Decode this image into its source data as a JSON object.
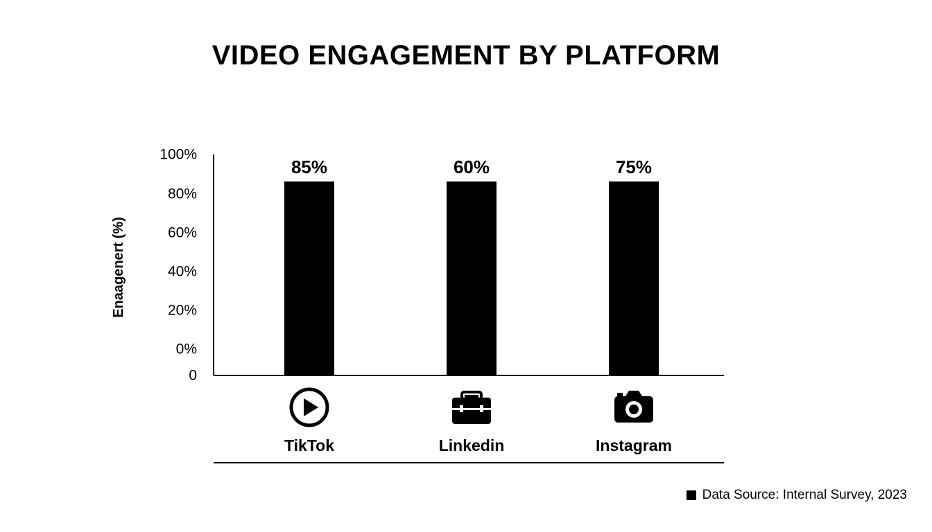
{
  "chart_data": {
    "type": "bar",
    "title": "VIDEO ENGAGEMENT BY PLATFORM",
    "ylabel": "Enaagenert (%)",
    "xlabel": "",
    "categories": [
      "TikTok",
      "Linkedin",
      "Instagram"
    ],
    "icons": [
      "play-icon",
      "briefcase-icon",
      "camera-icon"
    ],
    "values": [
      85,
      60,
      75
    ],
    "data_labels": [
      "85%",
      "60%",
      "75%"
    ],
    "y_ticks": [
      "100%",
      "80%",
      "60%",
      "40%",
      "20%",
      "0%",
      "0"
    ],
    "grid": false,
    "legend": "none",
    "colors": {
      "bar": "#000000",
      "axis": "#000000",
      "text": "#000000"
    }
  },
  "footer": {
    "source": "Data Source: Internal Survey, 2023"
  }
}
